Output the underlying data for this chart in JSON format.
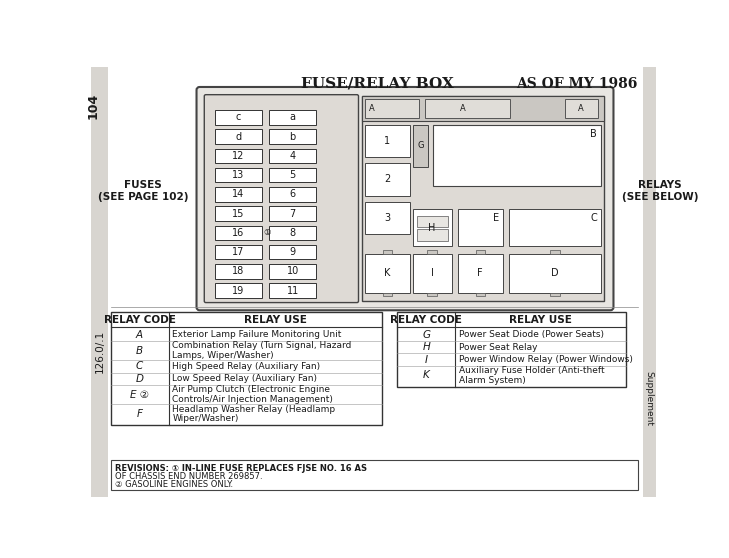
{
  "title_center": "FUSE/RELAY BOX",
  "title_right": "AS OF MY 1986",
  "left_label": "FUSES\n(SEE PAGE 102)",
  "right_label": "RELAYS\n(SEE BELOW)",
  "side_left": "104",
  "side_bottom": "126.0/.1",
  "side_supplement": "Supplement",
  "fuse_left_col": [
    "c",
    "d",
    "12",
    "13",
    "14",
    "15",
    "16",
    "17",
    "18",
    "19"
  ],
  "fuse_right_col": [
    "a",
    "b",
    "4",
    "5",
    "6",
    "7",
    "8",
    "9",
    "10",
    "11"
  ],
  "relay_table_left": {
    "headers": [
      "RELAY CODE",
      "RELAY USE"
    ],
    "rows": [
      [
        "A",
        "Exterior Lamp Failure Monitoring Unit"
      ],
      [
        "B",
        "Combination Relay (Turn Signal, Hazard\nLamps, Wiper/Washer)"
      ],
      [
        "C",
        "High Speed Relay (Auxiliary Fan)"
      ],
      [
        "D",
        "Low Speed Relay (Auxiliary Fan)"
      ],
      [
        "E ②",
        "Air Pump Clutch (Electronic Engine\nControls/Air Injection Management)"
      ],
      [
        "F",
        "Headlamp Washer Relay (Headlamp\nWiper/Washer)"
      ]
    ]
  },
  "relay_table_right": {
    "headers": [
      "RELAY CODE",
      "RELAY USE"
    ],
    "rows": [
      [
        "G",
        "Power Seat Diode (Power Seats)"
      ],
      [
        "H",
        "Power Seat Relay"
      ],
      [
        "I",
        "Power Window Relay (Power Windows)"
      ],
      [
        "K",
        "Auxiliary Fuse Holder (Anti-theft\nAlarm System)"
      ]
    ]
  },
  "revisions_text_1": "REVISIONS: ① IN-LINE FUSE REPLACES FJSE NO. 16 AS",
  "revisions_text_2": "OF CHASSIS END NUMBER 269857.",
  "revisions_text_3": "② GASOLINE ENGINES ONLY.",
  "bg_color": "#ffffff",
  "page_bg": "#e8e8e8",
  "diagram_bg": "#e0ddd8",
  "text_color": "#1a1a1a",
  "edge_color": "#555555"
}
